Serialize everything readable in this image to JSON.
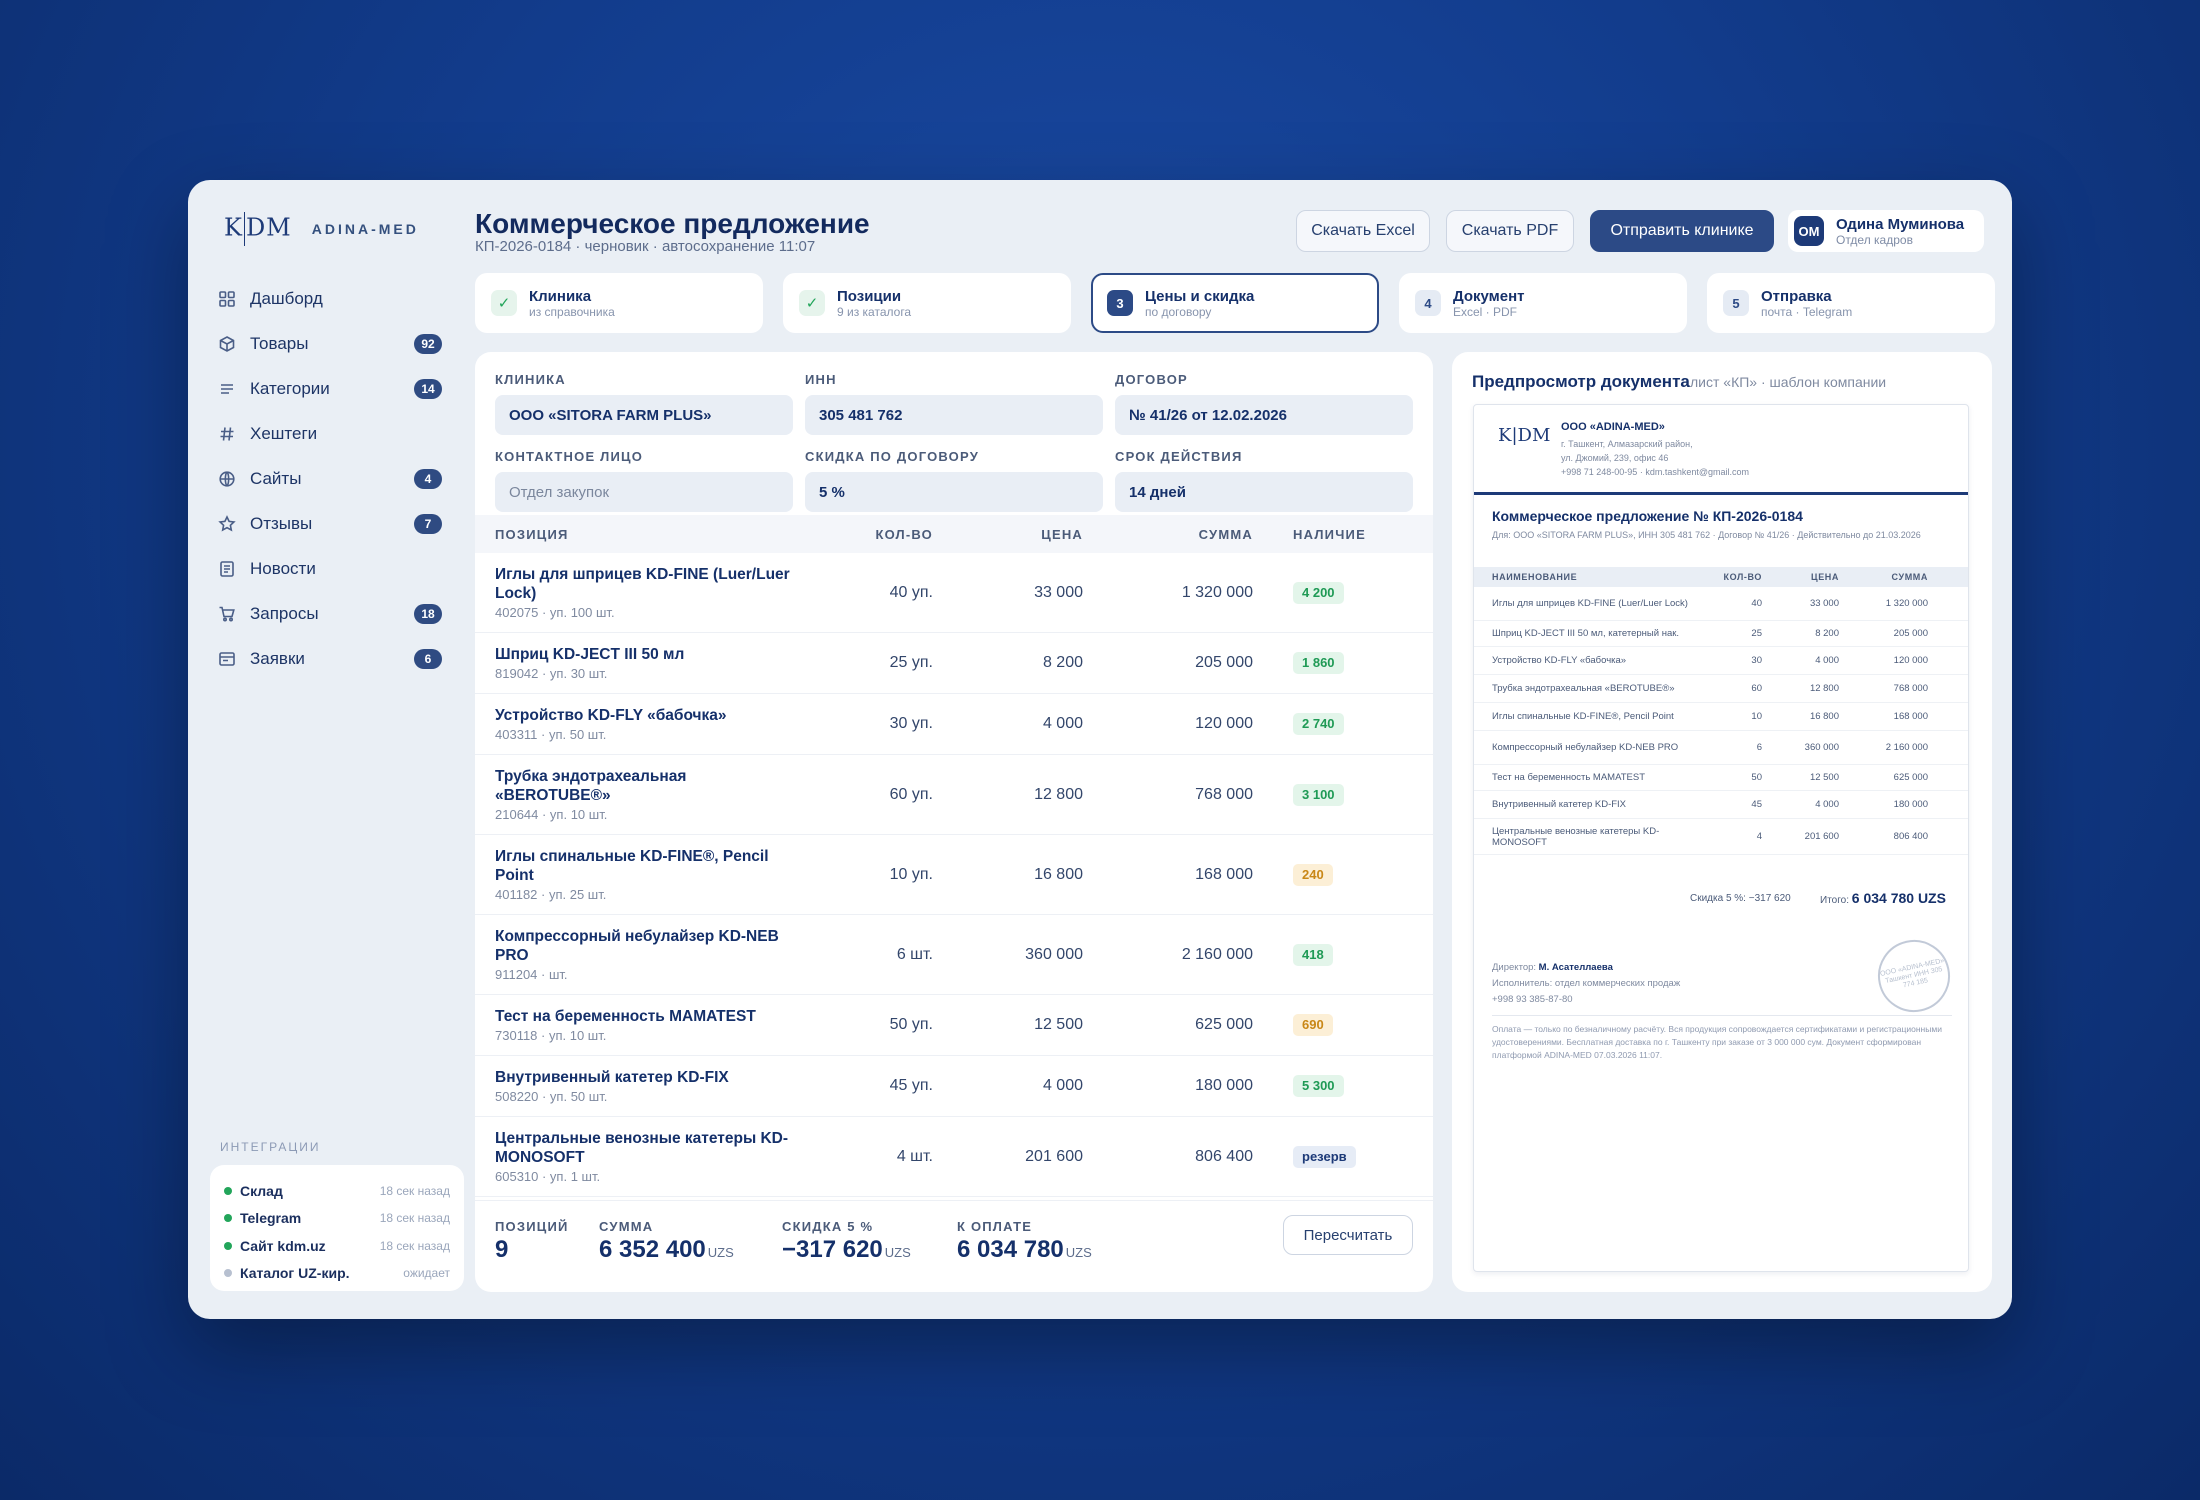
{
  "brand": {
    "logo": "KDM",
    "name": "ADINA-MED"
  },
  "sidebar": {
    "items": [
      {
        "icon": "dashboard-icon",
        "label": "Дашборд",
        "badge": ""
      },
      {
        "icon": "box-icon",
        "label": "Товары",
        "badge": "92"
      },
      {
        "icon": "list-icon",
        "label": "Категории",
        "badge": "14"
      },
      {
        "icon": "hashtag-icon",
        "label": "Хештеги",
        "badge": ""
      },
      {
        "icon": "globe-icon",
        "label": "Сайты",
        "badge": "4"
      },
      {
        "icon": "star-icon",
        "label": "Отзывы",
        "badge": "7"
      },
      {
        "icon": "news-icon",
        "label": "Новости",
        "badge": ""
      },
      {
        "icon": "cart-icon",
        "label": "Запросы",
        "badge": "18"
      },
      {
        "icon": "orders-icon",
        "label": "Заявки",
        "badge": "6"
      }
    ],
    "integrations_title": "ИНТЕГРАЦИИ",
    "integrations": [
      {
        "name": "Склад",
        "time": "18 сек назад",
        "status": "ok"
      },
      {
        "name": "Telegram",
        "time": "18 сек назад",
        "status": "ok"
      },
      {
        "name": "Сайт kdm.uz",
        "time": "18 сек назад",
        "status": "ok"
      },
      {
        "name": "Каталог UZ-кир.",
        "time": "ожидает",
        "status": "pending"
      }
    ]
  },
  "header": {
    "title": "Коммерческое предложение",
    "subtitle": "КП-2026-0184 · черновик · автосохранение 11:07",
    "btn_excel": "Скачать Excel",
    "btn_pdf": "Скачать PDF",
    "btn_send": "Отправить клинике",
    "user_initials": "ОМ",
    "user_name": "Одина Муминова",
    "user_role": "Отдел кадров"
  },
  "steps": [
    {
      "num": "✓",
      "title": "Клиника",
      "sub": "из справочника",
      "state": "done"
    },
    {
      "num": "✓",
      "title": "Позиции",
      "sub": "9 из каталога",
      "state": "done"
    },
    {
      "num": "3",
      "title": "Цены и скидка",
      "sub": "по договору",
      "state": "current"
    },
    {
      "num": "4",
      "title": "Документ",
      "sub": "Excel · PDF",
      "state": "todo"
    },
    {
      "num": "5",
      "title": "Отправка",
      "sub": "почта · Telegram",
      "state": "todo"
    }
  ],
  "form": {
    "clinic_label": "КЛИНИКА",
    "clinic_value": "ООО «SITORA FARM PLUS»",
    "inn_label": "ИНН",
    "inn_value": "305 481 762",
    "contract_label": "ДОГОВОР",
    "contract_value": "№ 41/26 от 12.02.2026",
    "contact_label": "КОНТАКТНОЕ ЛИЦО",
    "contact_placeholder": "Отдел закупок",
    "discount_label": "СКИДКА ПО ДОГОВОРУ",
    "discount_value": "5 %",
    "validity_label": "СРОК ДЕЙСТВИЯ",
    "validity_value": "14 дней"
  },
  "table": {
    "headers": {
      "name": "ПОЗИЦИЯ",
      "qty": "КОЛ-ВО",
      "price": "ЦЕНА",
      "sum": "СУММА",
      "stock": "НАЛИЧИЕ"
    },
    "rows": [
      {
        "name": "Иглы для шприцев KD-FINE (Luer/Luer Lock)",
        "sub": "402075 · уп. 100 шт.",
        "qty": "40 уп.",
        "price": "33 000",
        "sum": "1 320 000",
        "stock": "4 200",
        "stock_tone": "green"
      },
      {
        "name": "Шприц KD-JECT III 50 мл",
        "sub": "819042 · уп. 30 шт.",
        "qty": "25 уп.",
        "price": "8 200",
        "sum": "205 000",
        "stock": "1 860",
        "stock_tone": "green"
      },
      {
        "name": "Устройство KD-FLY «бабочка»",
        "sub": "403311 · уп. 50 шт.",
        "qty": "30 уп.",
        "price": "4 000",
        "sum": "120 000",
        "stock": "2 740",
        "stock_tone": "green"
      },
      {
        "name": "Трубка эндотрахеальная «BEROTUBE®»",
        "sub": "210644 · уп. 10 шт.",
        "qty": "60 уп.",
        "price": "12 800",
        "sum": "768 000",
        "stock": "3 100",
        "stock_tone": "green"
      },
      {
        "name": "Иглы спинальные KD-FINE®, Pencil Point",
        "sub": "401182 · уп. 25 шт.",
        "qty": "10 уп.",
        "price": "16 800",
        "sum": "168 000",
        "stock": "240",
        "stock_tone": "amber"
      },
      {
        "name": "Компрессорный небулайзер KD-NEB PRO",
        "sub": "911204 · шт.",
        "qty": "6 шт.",
        "price": "360 000",
        "sum": "2 160 000",
        "stock": "418",
        "stock_tone": "green"
      },
      {
        "name": "Тест на беременность MAMATEST",
        "sub": "730118 · уп. 10 шт.",
        "qty": "50 уп.",
        "price": "12 500",
        "sum": "625 000",
        "stock": "690",
        "stock_tone": "amber"
      },
      {
        "name": "Внутривенный катетер KD-FIX",
        "sub": "508220 · уп. 50 шт.",
        "qty": "45 уп.",
        "price": "4 000",
        "sum": "180 000",
        "stock": "5 300",
        "stock_tone": "green"
      },
      {
        "name": "Центральные венозные катетеры KD-MONOSOFT",
        "sub": "605310 · уп. 1 шт.",
        "qty": "4 шт.",
        "price": "201 600",
        "sum": "806 400",
        "stock": "резерв",
        "stock_tone": "blue"
      }
    ]
  },
  "totals": {
    "count_label": "ПОЗИЦИЙ",
    "count_value": "9",
    "sum_label": "СУММА",
    "sum_value": "6 352 400",
    "sum_unit": "UZS",
    "discount_label": "СКИДКА 5 %",
    "discount_value": "−317 620",
    "discount_unit": "UZS",
    "pay_label": "К ОПЛАТЕ",
    "pay_value": "6 034 780",
    "pay_unit": "UZS",
    "recalc": "Пересчитать"
  },
  "preview": {
    "title": "Предпросмотр документа",
    "sub": "лист «КП» · шаблон компании",
    "company": "ООО «ADINA-MED»",
    "address1": "г. Ташкент, Алмазарский район,",
    "address2": "ул. Джомий, 239, офис 46",
    "contacts": "+998 71 248-00-95 · kdm.tashkent@gmail.com",
    "doc_title": "Коммерческое предложение № КП-2026-0184",
    "doc_sub": "Для: ООО «SITORA FARM PLUS», ИНН 305 481 762 · Договор № 41/26 · Действительно до 21.03.2026",
    "headers": {
      "name": "НАИМЕНОВАНИЕ",
      "qty": "КОЛ-ВО",
      "price": "ЦЕНА",
      "sum": "СУММА"
    },
    "rows": [
      {
        "name": "Иглы для шприцев KD-FINE (Luer/Luer Lock)",
        "qty": "40",
        "price": "33 000",
        "sum": "1 320 000"
      },
      {
        "name": "Шприц KD-JECT III 50 мл, катетерный нак.",
        "qty": "25",
        "price": "8 200",
        "sum": "205 000"
      },
      {
        "name": "Устройство KD-FLY «бабочка»",
        "qty": "30",
        "price": "4 000",
        "sum": "120 000"
      },
      {
        "name": "Трубка эндотрахеальная «BEROTUBE®»",
        "qty": "60",
        "price": "12 800",
        "sum": "768 000"
      },
      {
        "name": "Иглы спинальные KD-FINE®, Pencil Point",
        "qty": "10",
        "price": "16 800",
        "sum": "168 000"
      },
      {
        "name": "Компрессорный небулайзер KD-NEB PRO",
        "qty": "6",
        "price": "360 000",
        "sum": "2 160 000"
      },
      {
        "name": "Тест на беременность MAMATEST",
        "qty": "50",
        "price": "12 500",
        "sum": "625 000"
      },
      {
        "name": "Внутривенный катетер KD-FIX",
        "qty": "45",
        "price": "4 000",
        "sum": "180 000"
      },
      {
        "name": "Центральные венозные катетеры KD-MONOSOFT",
        "qty": "4",
        "price": "201 600",
        "sum": "806 400"
      }
    ],
    "discount_line": "Скидка 5 %: −317 620",
    "total_label": "Итого:",
    "total_value": "6 034 780 UZS",
    "director_label": "Директор:",
    "director_name": "М. Асателлаева",
    "executor": "Исполнитель: отдел коммерческих продаж",
    "phone": "+998 93 385-87-80",
    "stamp_text": "ООО «ADINA-MED» Ташкент ИНН 305 774 185",
    "footer": "Оплата — только по безналичному расчёту. Вся продукция сопровождается сертификатами и регистрационными удостоверениями. Бесплатная доставка по г. Ташкенту при заказе от 3 000 000 сум. Документ сформирован платформой ADINA-MED 07.03.2026 11:07."
  }
}
